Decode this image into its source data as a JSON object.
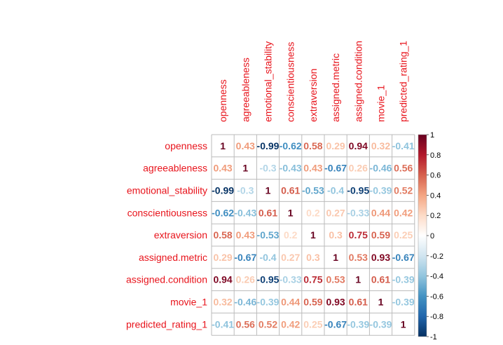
{
  "chart_data": {
    "type": "heatmap",
    "title": "",
    "variables": [
      "openness",
      "agreeableness",
      "emotional_stability",
      "conscientiousness",
      "extraversion",
      "assigned.metric",
      "assigned.condition",
      "movie_1",
      "predicted_rating_1"
    ],
    "matrix": [
      [
        1,
        0.43,
        -0.99,
        -0.62,
        0.58,
        0.29,
        0.94,
        0.32,
        -0.41
      ],
      [
        0.43,
        1,
        -0.3,
        -0.43,
        0.43,
        -0.67,
        0.26,
        -0.46,
        0.56
      ],
      [
        -0.99,
        -0.3,
        1,
        0.61,
        -0.53,
        -0.4,
        -0.95,
        -0.39,
        0.52
      ],
      [
        -0.62,
        -0.43,
        0.61,
        1,
        0.2,
        0.27,
        -0.33,
        0.44,
        0.42
      ],
      [
        0.58,
        0.43,
        -0.53,
        0.2,
        1,
        0.3,
        0.75,
        0.59,
        0.25
      ],
      [
        0.29,
        -0.67,
        -0.4,
        0.27,
        0.3,
        1,
        0.53,
        0.93,
        -0.67
      ],
      [
        0.94,
        0.26,
        -0.95,
        -0.33,
        0.75,
        0.53,
        1,
        0.61,
        -0.39
      ],
      [
        0.32,
        -0.46,
        -0.39,
        0.44,
        0.59,
        0.93,
        0.61,
        1,
        -0.39
      ],
      [
        -0.41,
        0.56,
        0.52,
        0.42,
        0.25,
        -0.67,
        -0.39,
        -0.39,
        1
      ]
    ],
    "color_scale": {
      "range": [
        -1,
        1
      ],
      "ticks": [
        "1",
        "0.8",
        "0.6",
        "0.4",
        "0.2",
        "0",
        "-0.2",
        "-0.4",
        "-0.6",
        "-0.8",
        "-1"
      ],
      "colors": [
        "#67001F",
        "#B2182B",
        "#D6604D",
        "#F4A582",
        "#FDDBC7",
        "#FFFFFF",
        "#D1E5F0",
        "#92C5DE",
        "#4393C3",
        "#2166AC",
        "#053061"
      ],
      "legend_placement": "right"
    },
    "label_color": "#e8141c",
    "grid": true
  }
}
